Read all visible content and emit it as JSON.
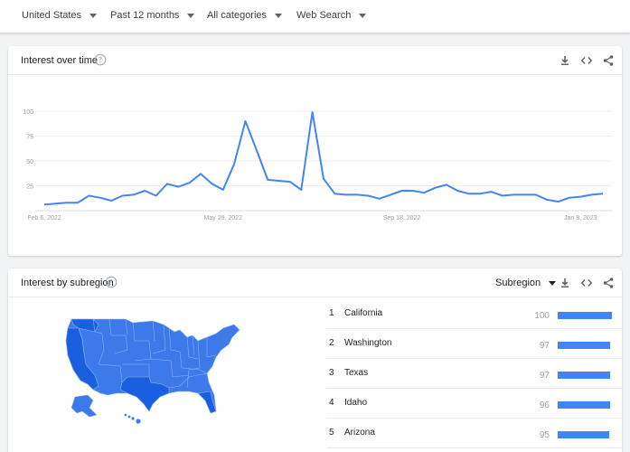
{
  "filters": {
    "region": "United States",
    "time": "Past 12 months",
    "category": "All categories",
    "property": "Web Search"
  },
  "interest_over_time": {
    "title": "Interest over time"
  },
  "interest_by_subregion": {
    "title": "Interest by subregion",
    "resolution": "Subregion",
    "rows": [
      {
        "rank": "1",
        "name": "California",
        "value": "100",
        "score": 100
      },
      {
        "rank": "2",
        "name": "Washington",
        "value": "97",
        "score": 97
      },
      {
        "rank": "3",
        "name": "Texas",
        "value": "97",
        "score": 97
      },
      {
        "rank": "4",
        "name": "Idaho",
        "value": "96",
        "score": 96
      },
      {
        "rank": "5",
        "name": "Arizona",
        "value": "95",
        "score": 95
      }
    ]
  },
  "colors": {
    "series": "#4285f4",
    "map_dark": "#1a5fe0",
    "map_mid": "#3b7ae8",
    "map_light": "#5d93ee"
  },
  "chart_data": {
    "type": "line",
    "title": "",
    "xlabel": "",
    "ylabel": "",
    "ylim": [
      0,
      100
    ],
    "yticks": [
      100,
      75,
      50,
      25
    ],
    "xtick_labels": [
      "Feb 6, 2022",
      "May 29, 2022",
      "Sep 18, 2022",
      "Jan 8, 2023"
    ],
    "xtick_index": [
      0,
      16,
      32,
      48
    ],
    "grid": true,
    "series": [
      {
        "values": [
          6,
          7,
          8,
          8,
          15,
          13,
          10,
          15,
          16,
          20,
          15,
          27,
          24,
          28,
          37,
          27,
          21,
          47,
          90,
          61,
          31,
          30,
          29,
          21,
          99,
          32,
          17,
          16,
          16,
          15,
          12,
          16,
          20,
          20,
          18,
          23,
          26,
          20,
          17,
          17,
          19,
          15,
          16,
          16,
          16,
          11,
          9,
          13,
          14,
          16,
          17
        ]
      }
    ]
  }
}
